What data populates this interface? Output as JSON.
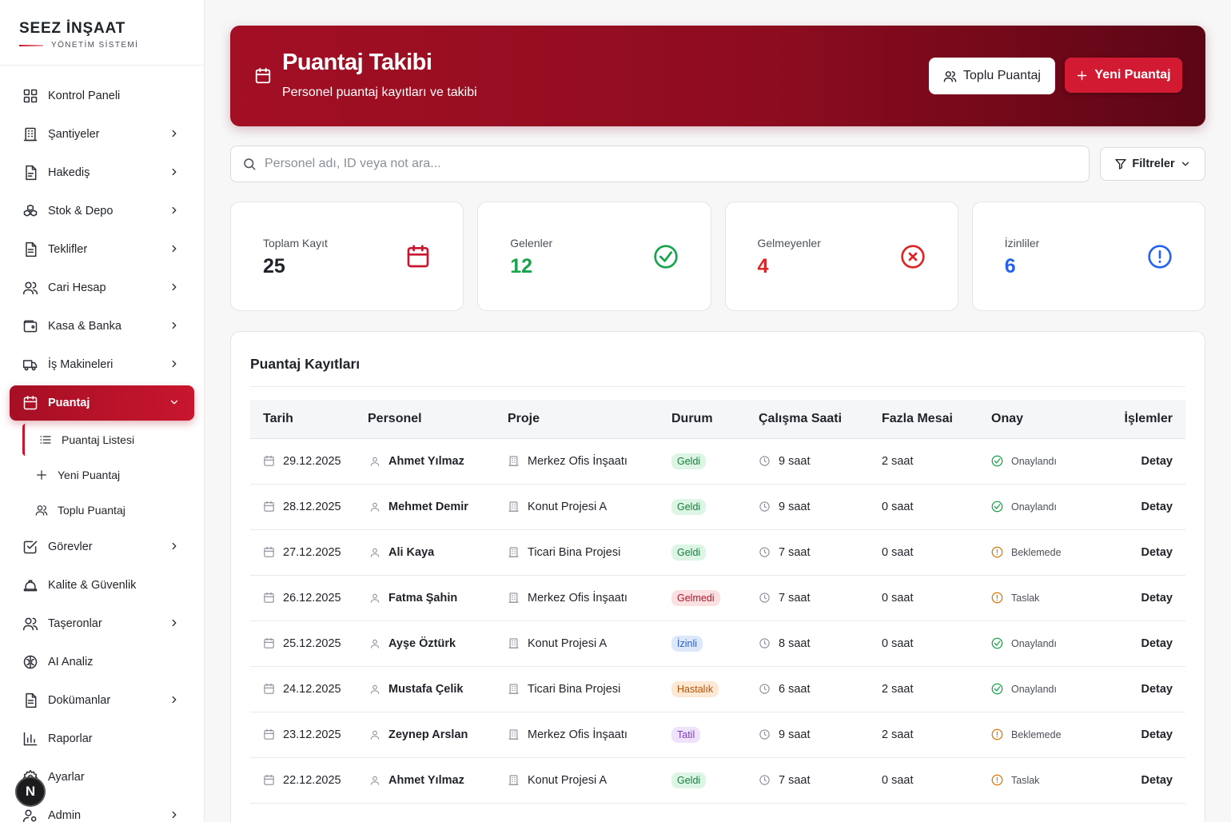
{
  "brand": {
    "title": "SEEZ İNŞAAT",
    "subtitle": "YÖNETİM SİSTEMİ"
  },
  "sidebar": {
    "items": [
      {
        "label": "Kontrol Paneli",
        "icon": "grid-icon",
        "chevron": false
      },
      {
        "label": "Şantiyeler",
        "icon": "building-icon",
        "chevron": true
      },
      {
        "label": "Hakediş",
        "icon": "document-icon",
        "chevron": true
      },
      {
        "label": "Stok & Depo",
        "icon": "boxes-icon",
        "chevron": true
      },
      {
        "label": "Teklifler",
        "icon": "file-text-icon",
        "chevron": true
      },
      {
        "label": "Cari Hesap",
        "icon": "users-icon",
        "chevron": true
      },
      {
        "label": "Kasa & Banka",
        "icon": "wallet-icon",
        "chevron": true
      },
      {
        "label": "İş Makineleri",
        "icon": "truck-icon",
        "chevron": true
      },
      {
        "label": "Puantaj",
        "icon": "calendar-icon",
        "chevron": true,
        "active": true
      },
      {
        "label": "Görevler",
        "icon": "check-square-icon",
        "chevron": true
      },
      {
        "label": "Kalite & Güvenlik",
        "icon": "hard-hat-icon",
        "chevron": false
      },
      {
        "label": "Taşeronlar",
        "icon": "users-icon",
        "chevron": true
      },
      {
        "label": "AI Analiz",
        "icon": "brain-icon",
        "chevron": false
      },
      {
        "label": "Dokümanlar",
        "icon": "file-text-icon",
        "chevron": true
      },
      {
        "label": "Raporlar",
        "icon": "bar-chart-icon",
        "chevron": false
      },
      {
        "label": "Ayarlar",
        "icon": "gear-icon",
        "chevron": false
      },
      {
        "label": "Admin",
        "icon": "user-cog-icon",
        "chevron": true
      }
    ],
    "subitems": [
      {
        "label": "Puantaj Listesi",
        "icon": "list-icon",
        "active": true
      },
      {
        "label": "Yeni Puantaj",
        "icon": "plus-icon"
      },
      {
        "label": "Toplu Puantaj",
        "icon": "users-icon"
      }
    ],
    "fab_letter": "N"
  },
  "header": {
    "title": "Puantaj Takibi",
    "subtitle": "Personel puantaj kayıtları ve takibi",
    "bulk_button": "Toplu Puantaj",
    "new_button": "Yeni Puantaj"
  },
  "search": {
    "placeholder": "Personel adı, ID veya not ara...",
    "value": ""
  },
  "filters": {
    "label": "Filtreler"
  },
  "stats": [
    {
      "label": "Toplam Kayıt",
      "value": "25",
      "color": "#1f2328",
      "icon": "calendar-icon",
      "icon_color": "#c8162e"
    },
    {
      "label": "Gelenler",
      "value": "12",
      "color": "#16a34a",
      "icon": "check-circle-icon",
      "icon_color": "#16a34a"
    },
    {
      "label": "Gelmeyenler",
      "value": "4",
      "color": "#dc2626",
      "icon": "x-circle-icon",
      "icon_color": "#dc2626"
    },
    {
      "label": "İzinliler",
      "value": "6",
      "color": "#2563eb",
      "icon": "alert-circle-icon",
      "icon_color": "#2563eb"
    }
  ],
  "table": {
    "title": "Puantaj Kayıtları",
    "columns": [
      "Tarih",
      "Personel",
      "Proje",
      "Durum",
      "Çalışma Saati",
      "Fazla Mesai",
      "Onay",
      "İşlemler"
    ],
    "rows": [
      {
        "date": "29.12.2025",
        "person": "Ahmet Yılmaz",
        "project": "Merkez Ofis İnşaatı",
        "status": "Geldi",
        "status_kind": "green",
        "hours": "9 saat",
        "overtime": "2 saat",
        "approval": "Onaylandı",
        "approval_kind": "ok",
        "action": "Detay"
      },
      {
        "date": "28.12.2025",
        "person": "Mehmet Demir",
        "project": "Konut Projesi A",
        "status": "Geldi",
        "status_kind": "green",
        "hours": "9 saat",
        "overtime": "0 saat",
        "approval": "Onaylandı",
        "approval_kind": "ok",
        "action": "Detay"
      },
      {
        "date": "27.12.2025",
        "person": "Ali Kaya",
        "project": "Ticari Bina Projesi",
        "status": "Geldi",
        "status_kind": "green",
        "hours": "7 saat",
        "overtime": "0 saat",
        "approval": "Beklemede",
        "approval_kind": "wait",
        "action": "Detay"
      },
      {
        "date": "26.12.2025",
        "person": "Fatma Şahin",
        "project": "Merkez Ofis İnşaatı",
        "status": "Gelmedi",
        "status_kind": "red",
        "hours": "7 saat",
        "overtime": "0 saat",
        "approval": "Taslak",
        "approval_kind": "wait",
        "action": "Detay"
      },
      {
        "date": "25.12.2025",
        "person": "Ayşe Öztürk",
        "project": "Konut Projesi A",
        "status": "İzinli",
        "status_kind": "blue",
        "hours": "8 saat",
        "overtime": "0 saat",
        "approval": "Onaylandı",
        "approval_kind": "ok",
        "action": "Detay"
      },
      {
        "date": "24.12.2025",
        "person": "Mustafa Çelik",
        "project": "Ticari Bina Projesi",
        "status": "Hastalık",
        "status_kind": "orange",
        "hours": "6 saat",
        "overtime": "2 saat",
        "approval": "Onaylandı",
        "approval_kind": "ok",
        "action": "Detay"
      },
      {
        "date": "23.12.2025",
        "person": "Zeynep Arslan",
        "project": "Merkez Ofis İnşaatı",
        "status": "Tatil",
        "status_kind": "purple",
        "hours": "9 saat",
        "overtime": "2 saat",
        "approval": "Beklemede",
        "approval_kind": "wait",
        "action": "Detay"
      },
      {
        "date": "22.12.2025",
        "person": "Ahmet Yılmaz",
        "project": "Konut Projesi A",
        "status": "Geldi",
        "status_kind": "green",
        "hours": "7 saat",
        "overtime": "0 saat",
        "approval": "Taslak",
        "approval_kind": "wait",
        "action": "Detay"
      }
    ]
  },
  "colors": {
    "accent": "#c8162e",
    "accent_dark": "#5c0615"
  }
}
